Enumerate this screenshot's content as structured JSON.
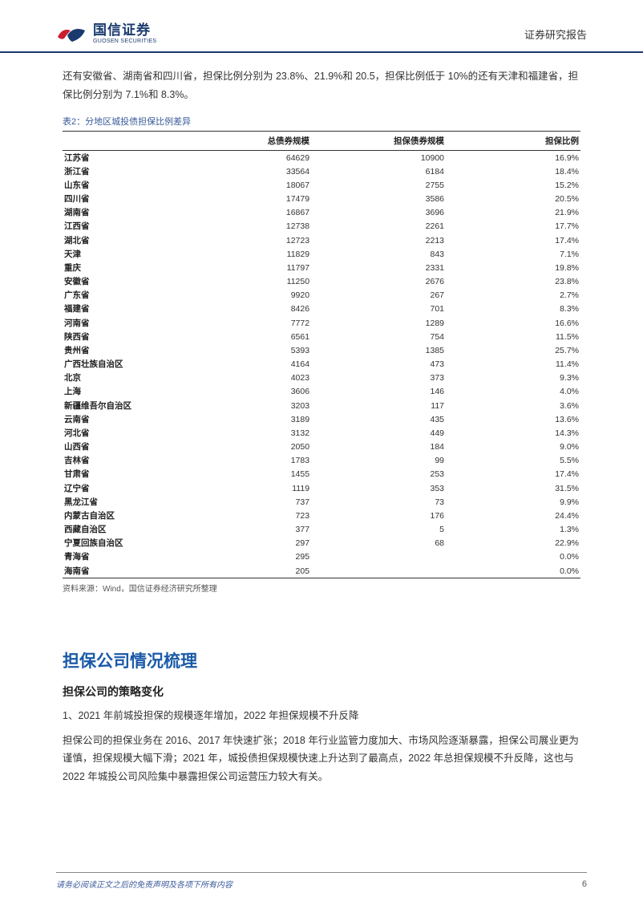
{
  "header": {
    "logo_cn": "国信证券",
    "logo_en": "GUOSEN SECURITIES",
    "right": "证券研究报告"
  },
  "intro": "还有安徽省、湖南省和四川省，担保比例分别为 23.8%、21.9%和 20.5，担保比例低于 10%的还有天津和福建省，担保比例分别为 7.1%和 8.3%。",
  "table": {
    "caption": "表2：分地区城投债担保比例差异",
    "columns": [
      "",
      "总债券规模",
      "担保债券规模",
      "担保比例"
    ],
    "rows": [
      [
        "江苏省",
        "64629",
        "10900",
        "16.9%"
      ],
      [
        "浙江省",
        "33564",
        "6184",
        "18.4%"
      ],
      [
        "山东省",
        "18067",
        "2755",
        "15.2%"
      ],
      [
        "四川省",
        "17479",
        "3586",
        "20.5%"
      ],
      [
        "湖南省",
        "16867",
        "3696",
        "21.9%"
      ],
      [
        "江西省",
        "12738",
        "2261",
        "17.7%"
      ],
      [
        "湖北省",
        "12723",
        "2213",
        "17.4%"
      ],
      [
        "天津",
        "11829",
        "843",
        "7.1%"
      ],
      [
        "重庆",
        "11797",
        "2331",
        "19.8%"
      ],
      [
        "安徽省",
        "11250",
        "2676",
        "23.8%"
      ],
      [
        "广东省",
        "9920",
        "267",
        "2.7%"
      ],
      [
        "福建省",
        "8426",
        "701",
        "8.3%"
      ],
      [
        "河南省",
        "7772",
        "1289",
        "16.6%"
      ],
      [
        "陕西省",
        "6561",
        "754",
        "11.5%"
      ],
      [
        "贵州省",
        "5393",
        "1385",
        "25.7%"
      ],
      [
        "广西壮族自治区",
        "4164",
        "473",
        "11.4%"
      ],
      [
        "北京",
        "4023",
        "373",
        "9.3%"
      ],
      [
        "上海",
        "3606",
        "146",
        "4.0%"
      ],
      [
        "新疆维吾尔自治区",
        "3203",
        "117",
        "3.6%"
      ],
      [
        "云南省",
        "3189",
        "435",
        "13.6%"
      ],
      [
        "河北省",
        "3132",
        "449",
        "14.3%"
      ],
      [
        "山西省",
        "2050",
        "184",
        "9.0%"
      ],
      [
        "吉林省",
        "1783",
        "99",
        "5.5%"
      ],
      [
        "甘肃省",
        "1455",
        "253",
        "17.4%"
      ],
      [
        "辽宁省",
        "1119",
        "353",
        "31.5%"
      ],
      [
        "黑龙江省",
        "737",
        "73",
        "9.9%"
      ],
      [
        "内蒙古自治区",
        "723",
        "176",
        "24.4%"
      ],
      [
        "西藏自治区",
        "377",
        "5",
        "1.3%"
      ],
      [
        "宁夏回族自治区",
        "297",
        "68",
        "22.9%"
      ],
      [
        "青海省",
        "295",
        "",
        "0.0%"
      ],
      [
        "海南省",
        "205",
        "",
        "0.0%"
      ]
    ],
    "source": "资料来源：Wind，国信证券经济研究所整理"
  },
  "section": {
    "title": "担保公司情况梳理",
    "sub": "担保公司的策略变化",
    "p1": "1、2021 年前城投担保的规模逐年增加，2022 年担保规模不升反降",
    "p2": "担保公司的担保业务在 2016、2017 年快速扩张；2018 年行业监管力度加大、市场风险逐渐暴露，担保公司展业更为谨慎，担保规模大幅下滑；2021 年，城投债担保规模快速上升达到了最高点，2022 年总担保规模不升反降，这也与 2022 年城投公司风险集中暴露担保公司运营压力较大有关。"
  },
  "footer": {
    "left": "请务必阅读正文之后的免责声明及各项下所有内容",
    "page": "6"
  },
  "colors": {
    "brand_blue": "#1a3a6e",
    "section_blue": "#1a5aa8",
    "caption_blue": "#3a5a9a",
    "logo_red": "#c8202f",
    "text": "#333333"
  }
}
